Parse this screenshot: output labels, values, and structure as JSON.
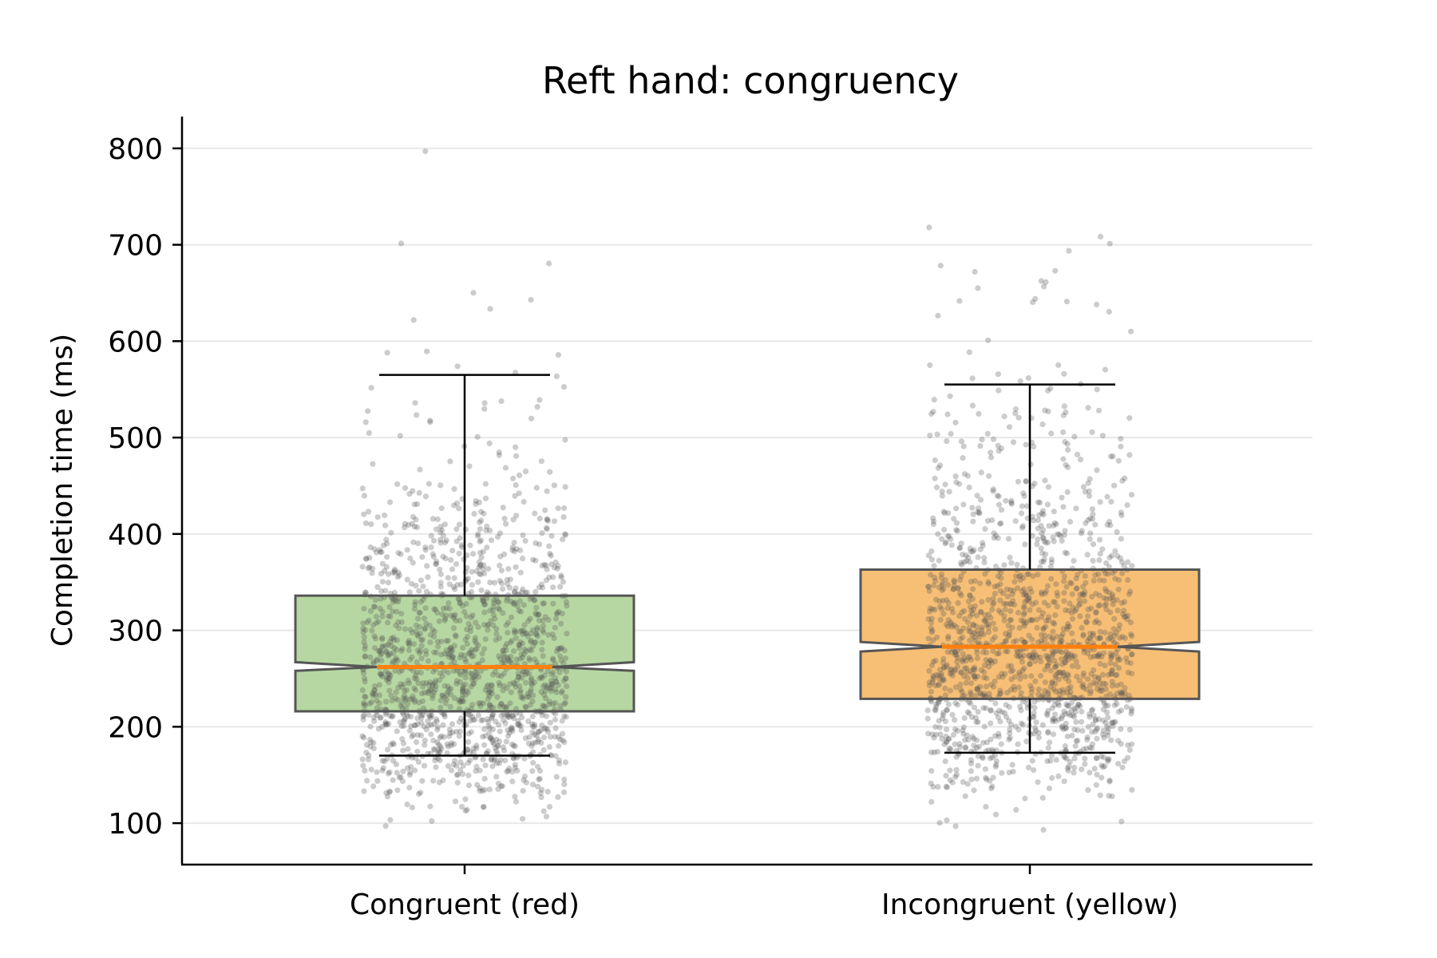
{
  "chart_data": {
    "type": "box",
    "title": "Reft hand: congruency",
    "xlabel": "",
    "ylabel": "Completion time (ms)",
    "ylim": [
      57,
      833
    ],
    "yticks": [
      100,
      200,
      300,
      400,
      500,
      600,
      700,
      800
    ],
    "grid": "horizontal",
    "notched": true,
    "categories": [
      "Congruent (red)",
      "Incongruent (yellow)"
    ],
    "boxes": [
      {
        "label": "Congruent (red)",
        "color": "#b6d7a1",
        "whisker_low": 170,
        "q1": 216,
        "median": 262,
        "notch_low": 258,
        "notch_high": 267,
        "q3": 336,
        "whisker_high": 565,
        "points_min": 97,
        "points_max": 797
      },
      {
        "label": "Incongruent (yellow)",
        "color": "#f7bf75",
        "whisker_low": 173,
        "q1": 229,
        "median": 283,
        "notch_low": 278,
        "notch_high": 288,
        "q3": 363,
        "whisker_high": 555,
        "points_min": 93,
        "points_max": 718
      }
    ],
    "median_color": "#ff7f0e",
    "jitter_point_color": "#555555"
  }
}
